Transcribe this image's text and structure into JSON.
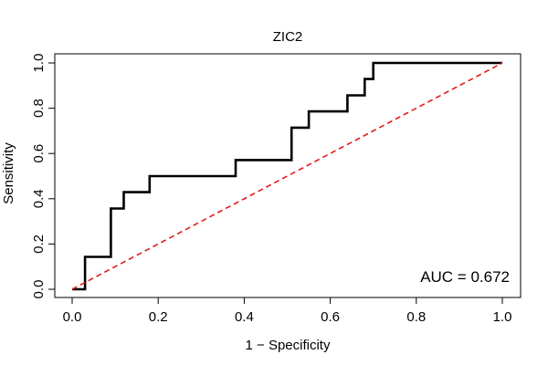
{
  "chart_data": {
    "type": "line",
    "title": "ZIC2",
    "xlabel": "1 − Specificity",
    "ylabel": "Sensitivity",
    "xlim": [
      0,
      1
    ],
    "ylim": [
      0,
      1
    ],
    "x_ticks": [
      0.0,
      0.2,
      0.4,
      0.6,
      0.8,
      1.0
    ],
    "x_tick_labels": [
      "0.0",
      "0.2",
      "0.4",
      "0.6",
      "0.8",
      "1.0"
    ],
    "y_ticks": [
      0.0,
      0.2,
      0.4,
      0.6,
      0.8,
      1.0
    ],
    "y_tick_labels": [
      "0.0",
      "0.2",
      "0.4",
      "0.6",
      "0.8",
      "1.0"
    ],
    "grid": false,
    "annotation": "AUC = 0.672",
    "series": [
      {
        "name": "ROC curve",
        "color": "#000000",
        "style": "solid",
        "x": [
          0.0,
          0.03,
          0.03,
          0.09,
          0.09,
          0.09,
          0.12,
          0.12,
          0.18,
          0.18,
          0.38,
          0.38,
          0.51,
          0.51,
          0.55,
          0.55,
          0.64,
          0.64,
          0.68,
          0.68,
          0.7,
          0.7,
          1.0
        ],
        "y": [
          0.0,
          0.0,
          0.143,
          0.143,
          0.286,
          0.357,
          0.357,
          0.429,
          0.429,
          0.5,
          0.5,
          0.571,
          0.571,
          0.714,
          0.714,
          0.786,
          0.786,
          0.857,
          0.857,
          0.929,
          0.929,
          1.0,
          1.0
        ]
      },
      {
        "name": "chance line",
        "color": "#e41a1c",
        "style": "dashed",
        "x": [
          0.0,
          1.0
        ],
        "y": [
          0.0,
          1.0
        ]
      }
    ]
  }
}
